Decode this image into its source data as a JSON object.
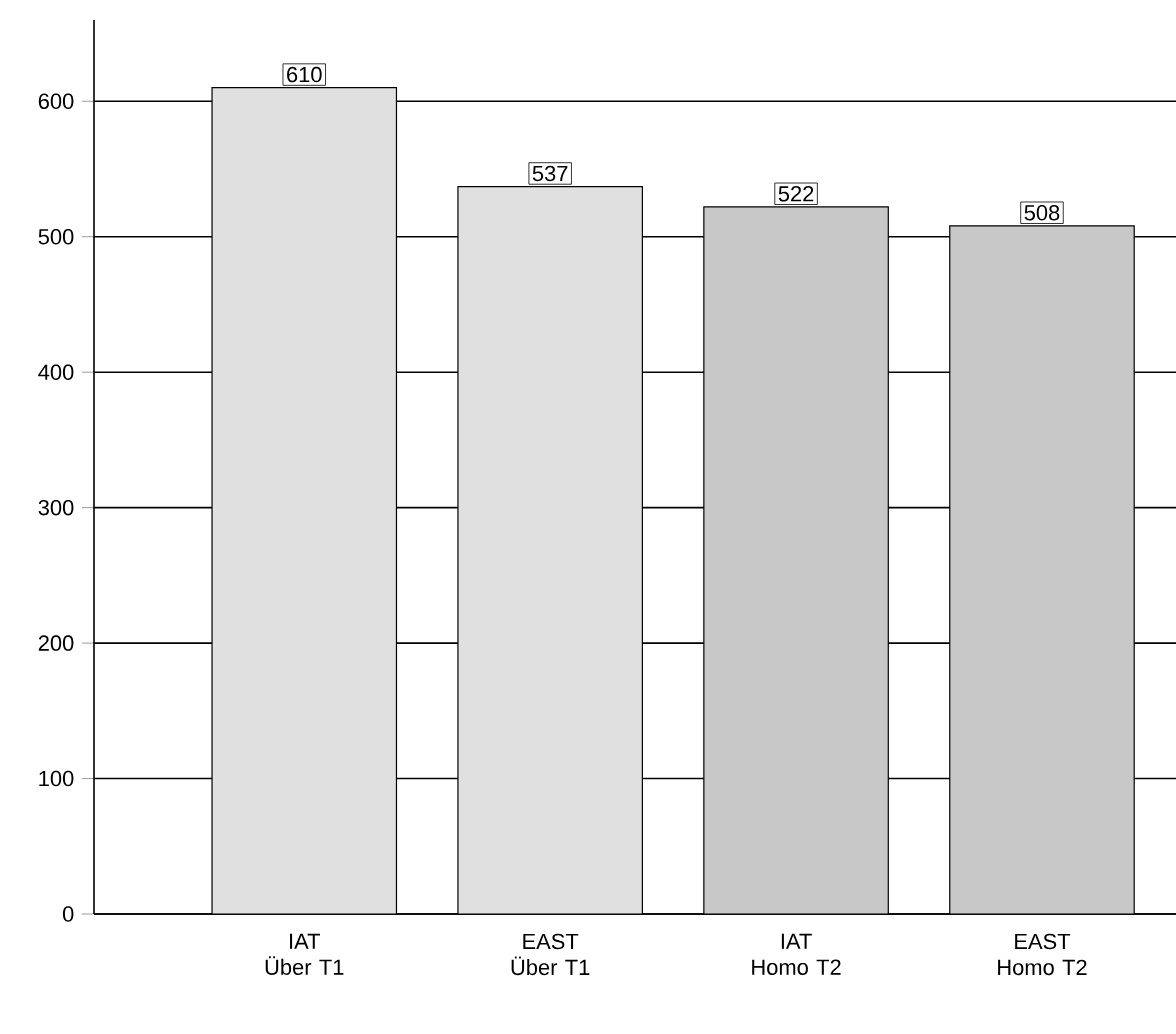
{
  "chart_data": {
    "type": "bar",
    "categories": [
      "IAT Über T1",
      "EAST Über T1",
      "IAT Homo T2",
      "EAST Homo T2"
    ],
    "values": [
      610,
      537,
      522,
      508
    ],
    "colors": [
      "#e0e0e0",
      "#e0e0e0",
      "#c8c8c8",
      "#c8c8c8"
    ],
    "ylim": [
      0,
      660
    ],
    "yticks": [
      0,
      100,
      200,
      300,
      400,
      500,
      600
    ],
    "grid": "y",
    "data_labels": true
  }
}
